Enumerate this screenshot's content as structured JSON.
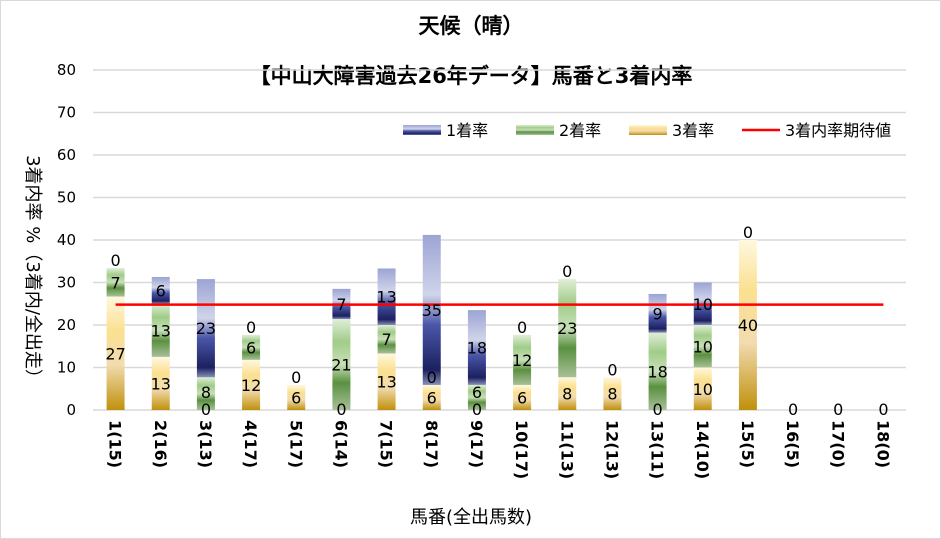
{
  "chart_data": {
    "type": "bar",
    "stacked": true,
    "title": "天候（晴）",
    "subtitle": "【中山大障害過去26年データ】馬番と3着内率",
    "xlabel": "馬番(全出馬数)",
    "ylabel": "3着内率 %（3着内/全出走）",
    "ylim": [
      0,
      80
    ],
    "yticks": [
      0,
      10,
      20,
      30,
      40,
      50,
      60,
      70,
      80
    ],
    "grid": true,
    "legend_position": "top-right",
    "categories": [
      "1(15)",
      "2(16)",
      "3(13)",
      "4(17)",
      "5(17)",
      "6(14)",
      "7(15)",
      "8(17)",
      "9(17)",
      "10(17)",
      "11(13)",
      "12(13)",
      "13(11)",
      "14(10)",
      "15(5)",
      "16(5)",
      "17(0)",
      "18(0)"
    ],
    "series": [
      {
        "name": "3着率",
        "color": "#e0b040",
        "values": [
          26.7,
          12.5,
          0,
          11.8,
          5.9,
          0,
          13.3,
          5.9,
          0,
          5.9,
          7.7,
          7.7,
          0,
          10,
          40,
          0,
          0,
          0
        ],
        "labels": [
          "27",
          "13",
          "0",
          "12",
          "6",
          "0",
          "13",
          "6",
          "0",
          "6",
          "8",
          "8",
          "0",
          "10",
          "40",
          "0",
          "0",
          "0"
        ]
      },
      {
        "name": "2着率",
        "color": "#70a850",
        "values": [
          6.7,
          12.5,
          7.7,
          5.9,
          0,
          21.4,
          6.7,
          0,
          5.9,
          11.8,
          23.1,
          0,
          18.2,
          10,
          0,
          0,
          0,
          0
        ],
        "labels": [
          "7",
          "13",
          "8",
          "6",
          "0",
          "21",
          "7",
          "0",
          "6",
          "12",
          "23",
          "0",
          "18",
          "10",
          "0",
          "",
          "",
          ""
        ]
      },
      {
        "name": "1着率",
        "color": "#404a98",
        "values": [
          0,
          6.3,
          23.1,
          0,
          0,
          7.1,
          13.3,
          35.3,
          17.6,
          0,
          0,
          0,
          9.1,
          10,
          0,
          0,
          0,
          0
        ],
        "labels": [
          "0",
          "6",
          "23",
          "0",
          "",
          "7",
          "13",
          "35",
          "18",
          "0",
          "0",
          "",
          "9",
          "10",
          "",
          "",
          "",
          ""
        ]
      }
    ],
    "reference_line": {
      "name": "3着内率期待値",
      "value": 24.8,
      "color": "#ff0000"
    }
  }
}
